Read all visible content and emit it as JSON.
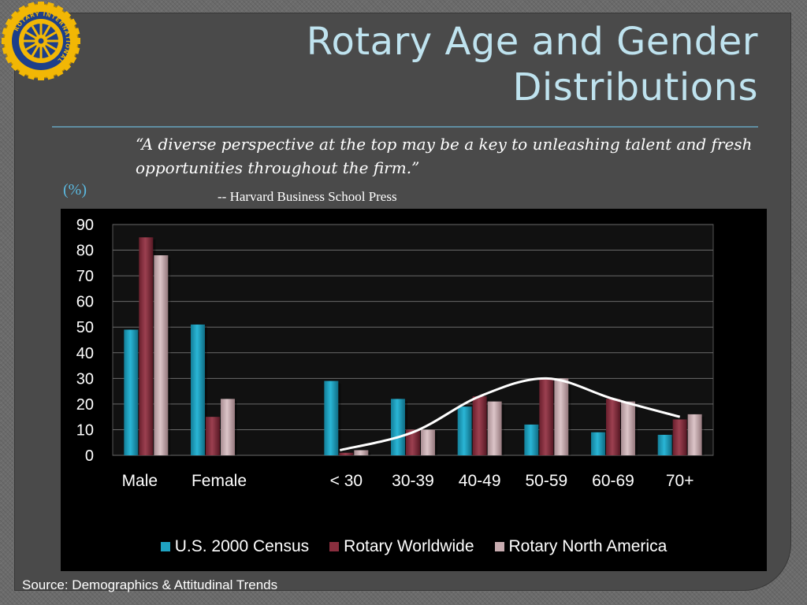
{
  "slide": {
    "title_line1": "Rotary Age and Gender",
    "title_line2": "Distributions",
    "quote_line1": "“A diverse perspective at the top may be a key to unleashing talent and fresh",
    "quote_line2": "opportunities throughout the firm.”",
    "attribution": "-- Harvard Business School Press",
    "unit_label": "(%)",
    "source": "Source: Demographics & Attitudinal Trends",
    "logo_text": "ROTARY INTERNATIONAL"
  },
  "colors": {
    "census": "#1fa3c2",
    "worldwide": "#8a2e3e",
    "north_america": "#c8acb0",
    "trend_line": "#ffffff",
    "title": "#bfe3ef",
    "logo_gold": "#f2b705"
  },
  "chart_data": {
    "type": "bar",
    "categories": [
      "Male",
      "Female",
      "",
      "< 30",
      "30-39",
      "40-49",
      "50-59",
      "60-69",
      "70+"
    ],
    "series": [
      {
        "name": "U.S. 2000 Census",
        "values": [
          49,
          51,
          null,
          29,
          22,
          19,
          12,
          9,
          8
        ]
      },
      {
        "name": "Rotary Worldwide",
        "values": [
          85,
          15,
          null,
          1,
          10,
          23,
          30,
          22,
          14
        ]
      },
      {
        "name": "Rotary North America",
        "values": [
          78,
          22,
          null,
          2,
          10,
          21,
          30,
          21,
          16
        ]
      }
    ],
    "trend_line": {
      "categories": [
        "< 30",
        "30-39",
        "40-49",
        "50-59",
        "60-69",
        "70+"
      ],
      "values": [
        2,
        9,
        23,
        30,
        22,
        15
      ]
    },
    "ylim": [
      0,
      90
    ],
    "yticks": [
      0,
      10,
      20,
      30,
      40,
      50,
      60,
      70,
      80,
      90
    ],
    "grid": true,
    "legend_position": "bottom"
  }
}
